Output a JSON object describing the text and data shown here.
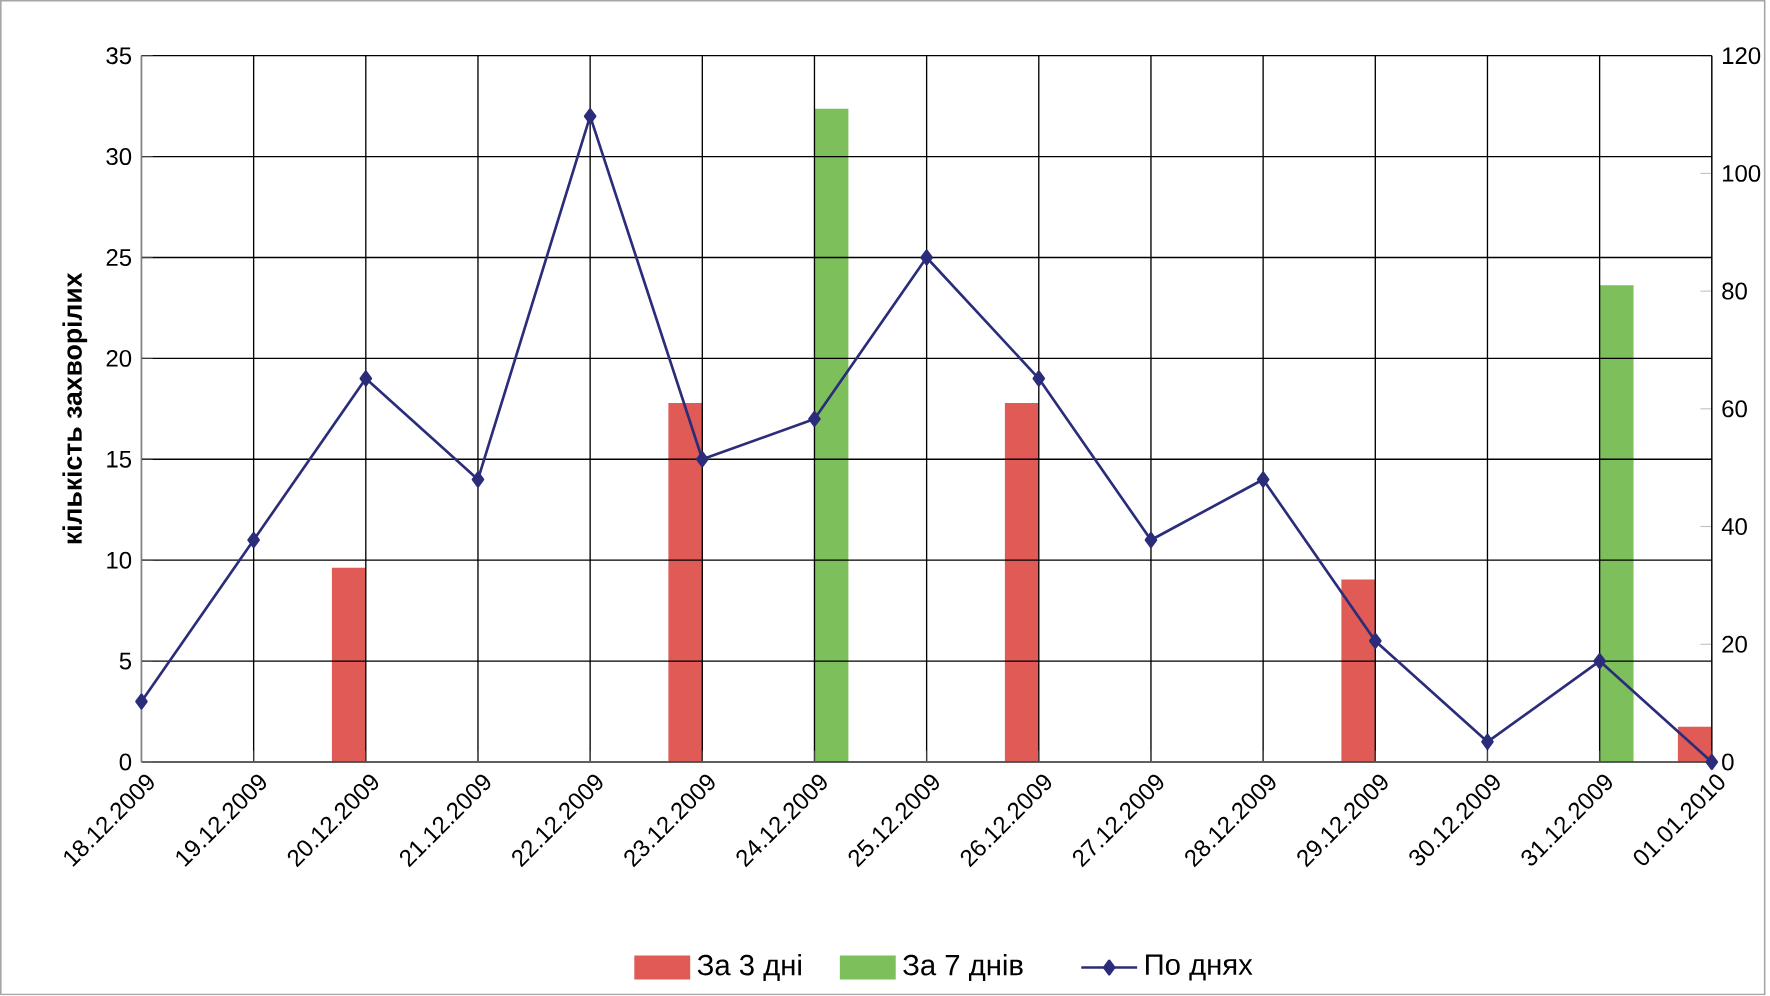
{
  "chart_data": {
    "type": "bar",
    "ylabel": "кількість захворілих",
    "categories": [
      "18.12.2009",
      "19.12.2009",
      "20.12.2009",
      "21.12.2009",
      "22.12.2009",
      "23.12.2009",
      "24.12.2009",
      "25.12.2009",
      "26.12.2009",
      "27.12.2009",
      "28.12.2009",
      "29.12.2009",
      "30.12.2009",
      "31.12.2009",
      "01.01.2010"
    ],
    "series": [
      {
        "name": "За 3 дні",
        "axis": "y2",
        "color": "#e05a56",
        "values": [
          null,
          null,
          33,
          null,
          null,
          61,
          null,
          null,
          61,
          null,
          null,
          31,
          null,
          null,
          6
        ]
      },
      {
        "name": "За 7 днів",
        "axis": "y2",
        "color": "#7dbf5a",
        "values": [
          null,
          null,
          null,
          null,
          null,
          null,
          111,
          null,
          null,
          null,
          null,
          null,
          null,
          81,
          null
        ]
      },
      {
        "name": "По днях",
        "type": "line",
        "color": "#2b2d7a",
        "marker": "diamond",
        "values": [
          3,
          11,
          19,
          14,
          32,
          15,
          17,
          25,
          19,
          11,
          14,
          6,
          1,
          5,
          0
        ]
      }
    ],
    "ylim": [
      0,
      35
    ],
    "yticks": [
      0,
      5,
      10,
      15,
      20,
      25,
      30,
      35
    ],
    "y2lim": [
      0,
      120
    ],
    "y2ticks": [
      0,
      20,
      40,
      60,
      80,
      100,
      120
    ],
    "grid": true,
    "legend": "bottom"
  }
}
